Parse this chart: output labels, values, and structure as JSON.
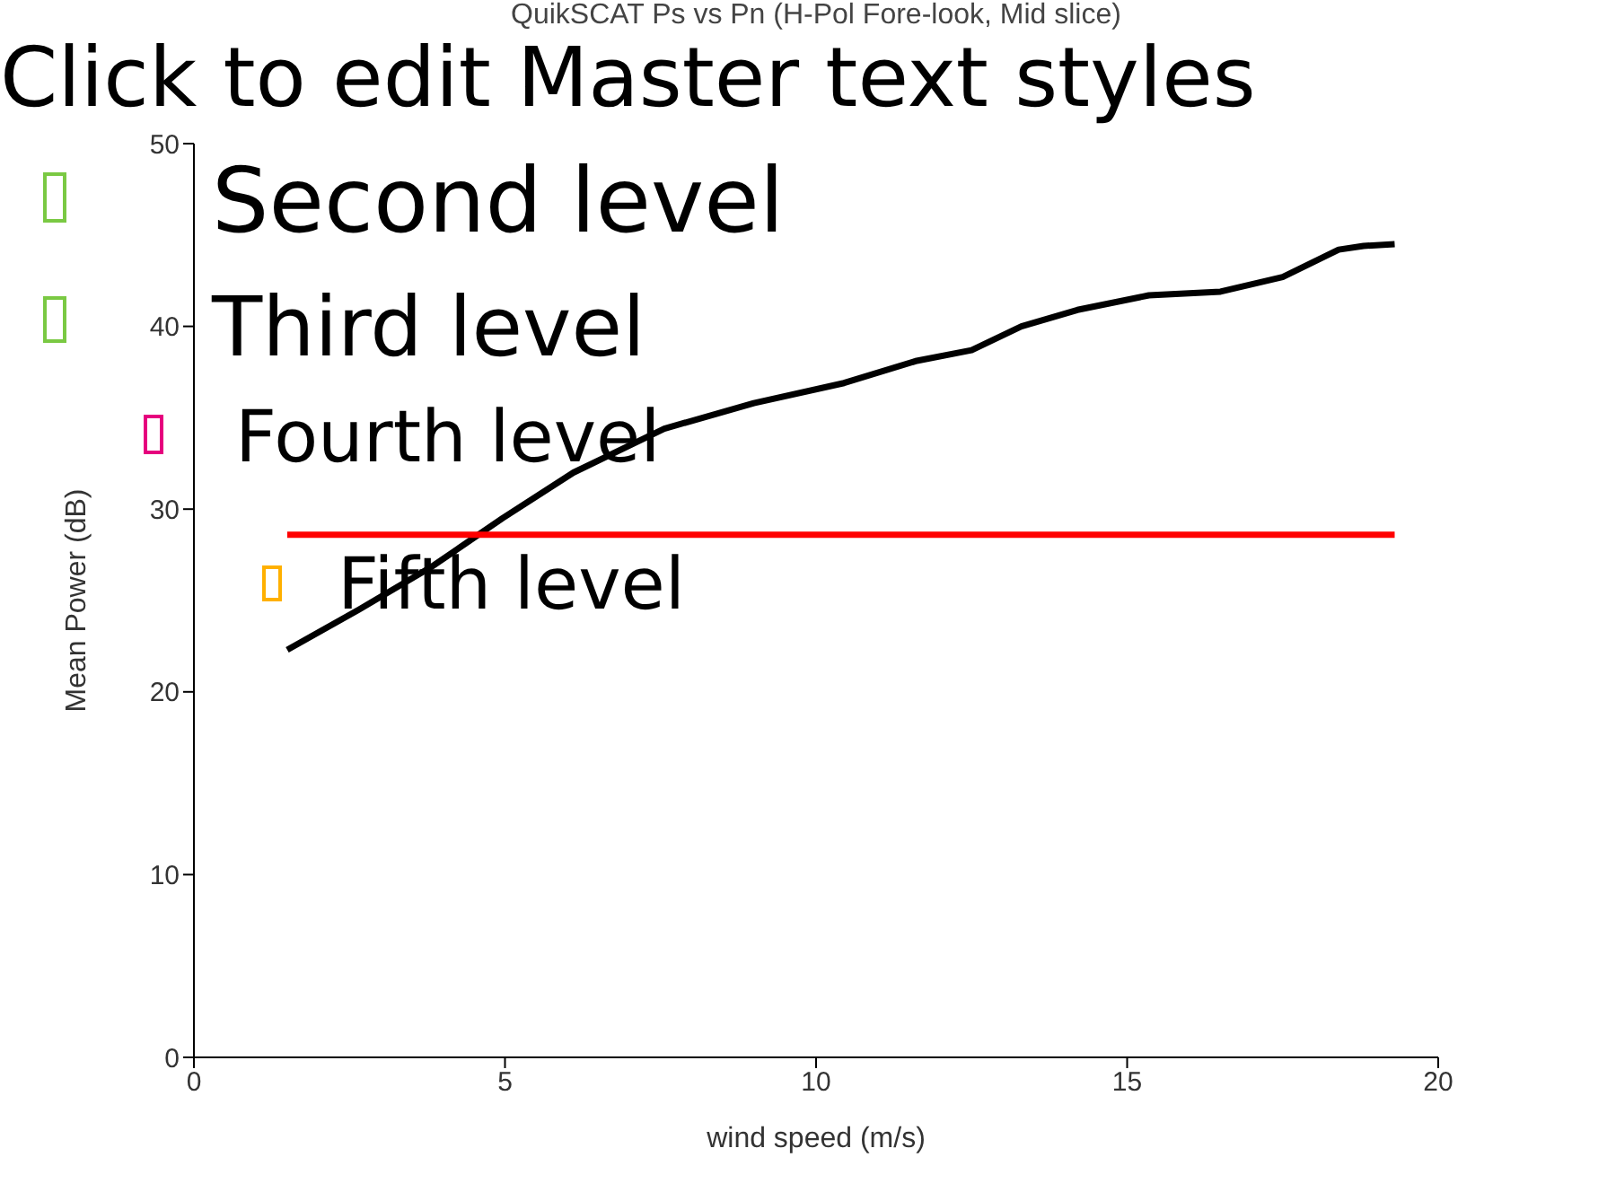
{
  "chart_data": {
    "type": "line",
    "title": "QuikSCAT Ps vs Pn (H-Pol Fore-look, Mid slice)",
    "xlabel": "wind speed (m/s)",
    "ylabel": "Mean Power (dB)",
    "xlim": [
      0,
      20
    ],
    "xticks": [
      0,
      5,
      10,
      15,
      20
    ],
    "ylim": [
      0,
      50
    ],
    "yticks": [
      0,
      10,
      20,
      30,
      40,
      50
    ],
    "grid": false,
    "legend": false,
    "marker": "none",
    "line_style": "solid",
    "series": [
      {
        "color": "#000000",
        "x": [
          1.5,
          2.65,
          3.8,
          4.96,
          6.1,
          7.56,
          9.0,
          10.45,
          11.6,
          12.5,
          13.3,
          14.2,
          15.35,
          16.5,
          17.5,
          18.4,
          18.8,
          19.3
        ],
        "values": [
          22.3,
          24.5,
          26.8,
          29.5,
          32.0,
          34.4,
          35.8,
          36.9,
          38.1,
          38.7,
          40.0,
          40.9,
          41.7,
          41.9,
          42.7,
          44.2,
          44.4,
          44.5
        ]
      },
      {
        "color": "#ff0000",
        "x": [
          1.5,
          19.3
        ],
        "values": [
          28.6,
          28.6
        ]
      }
    ],
    "annotations": [
      "Click to edit Master text styles",
      "Second level",
      "Third level",
      "Fourth level",
      "Fifth level"
    ]
  }
}
